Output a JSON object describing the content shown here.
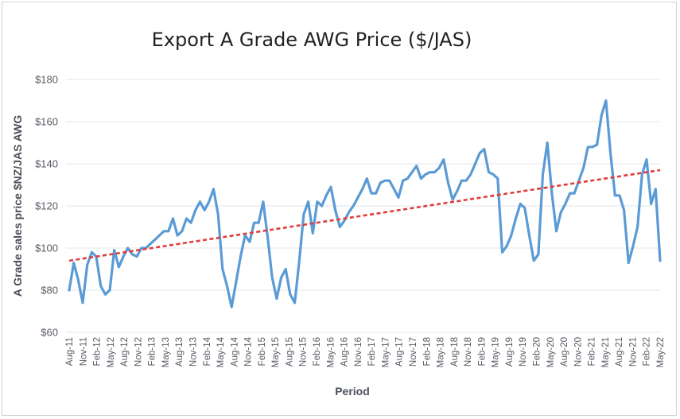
{
  "chart_data": {
    "type": "line",
    "title": "Export A Grade AWG Price ($/JAS)",
    "xlabel": "Period",
    "ylabel": "A Grade sales price $NZ/JAS AWG",
    "ylim": [
      60,
      180
    ],
    "yticks": [
      60,
      80,
      100,
      120,
      140,
      160,
      180
    ],
    "ytick_labels": [
      "$60",
      "$80",
      "$100",
      "$120",
      "$140",
      "$160",
      "$180"
    ],
    "grid": "horizontal",
    "x_tick_labels": [
      "Aug-11",
      "Nov-11",
      "Feb-12",
      "May-12",
      "Aug-12",
      "Nov-12",
      "Feb-13",
      "May-13",
      "Aug-13",
      "Nov-13",
      "Feb-14",
      "May-14",
      "Aug-14",
      "Nov-14",
      "Feb-15",
      "May-15",
      "Aug-15",
      "Nov-15",
      "Feb-16",
      "May-16",
      "Aug-16",
      "Nov-16",
      "Feb-17",
      "May-17",
      "Aug-17",
      "Nov-17",
      "Feb-18",
      "May-18",
      "Aug-18",
      "Nov-18",
      "Feb-19",
      "May-19",
      "Aug-19",
      "Nov-19",
      "Feb-20",
      "May-20",
      "Aug-20",
      "Nov-20",
      "Feb-21",
      "May-21",
      "Aug-21",
      "Nov-21",
      "Feb-22",
      "May-22"
    ],
    "series": [
      {
        "style": "solid",
        "color": "#5b9bd5",
        "values": [
          80,
          93,
          85,
          74,
          92,
          98,
          96,
          82,
          78,
          80,
          99,
          91,
          96,
          100,
          97,
          96,
          100,
          100,
          102,
          104,
          106,
          108,
          108,
          114,
          106,
          108,
          114,
          112,
          118,
          122,
          118,
          122,
          128,
          116,
          90,
          82,
          72,
          84,
          96,
          106,
          103,
          112,
          112,
          122,
          105,
          86,
          76,
          86,
          90,
          78,
          74,
          94,
          116,
          122,
          107,
          122,
          120,
          125,
          129,
          118,
          110,
          113,
          117,
          120,
          124,
          128,
          133,
          126,
          126,
          131,
          132,
          132,
          128,
          124,
          132,
          133,
          136,
          139,
          133,
          135,
          136,
          136,
          138,
          142,
          131,
          123,
          127,
          132,
          132,
          135,
          140,
          145,
          147,
          136,
          135,
          133,
          98,
          101,
          106,
          114,
          121,
          119,
          106,
          94,
          97,
          135,
          150,
          126,
          108,
          117,
          121,
          126,
          126,
          132,
          138,
          148,
          148,
          149,
          163,
          170,
          145,
          125,
          125,
          118,
          93,
          101,
          110,
          135,
          142,
          121,
          128,
          94
        ]
      },
      {
        "style": "dashed",
        "color": "#e03c3c",
        "values": [
          94,
          137
        ]
      }
    ]
  }
}
